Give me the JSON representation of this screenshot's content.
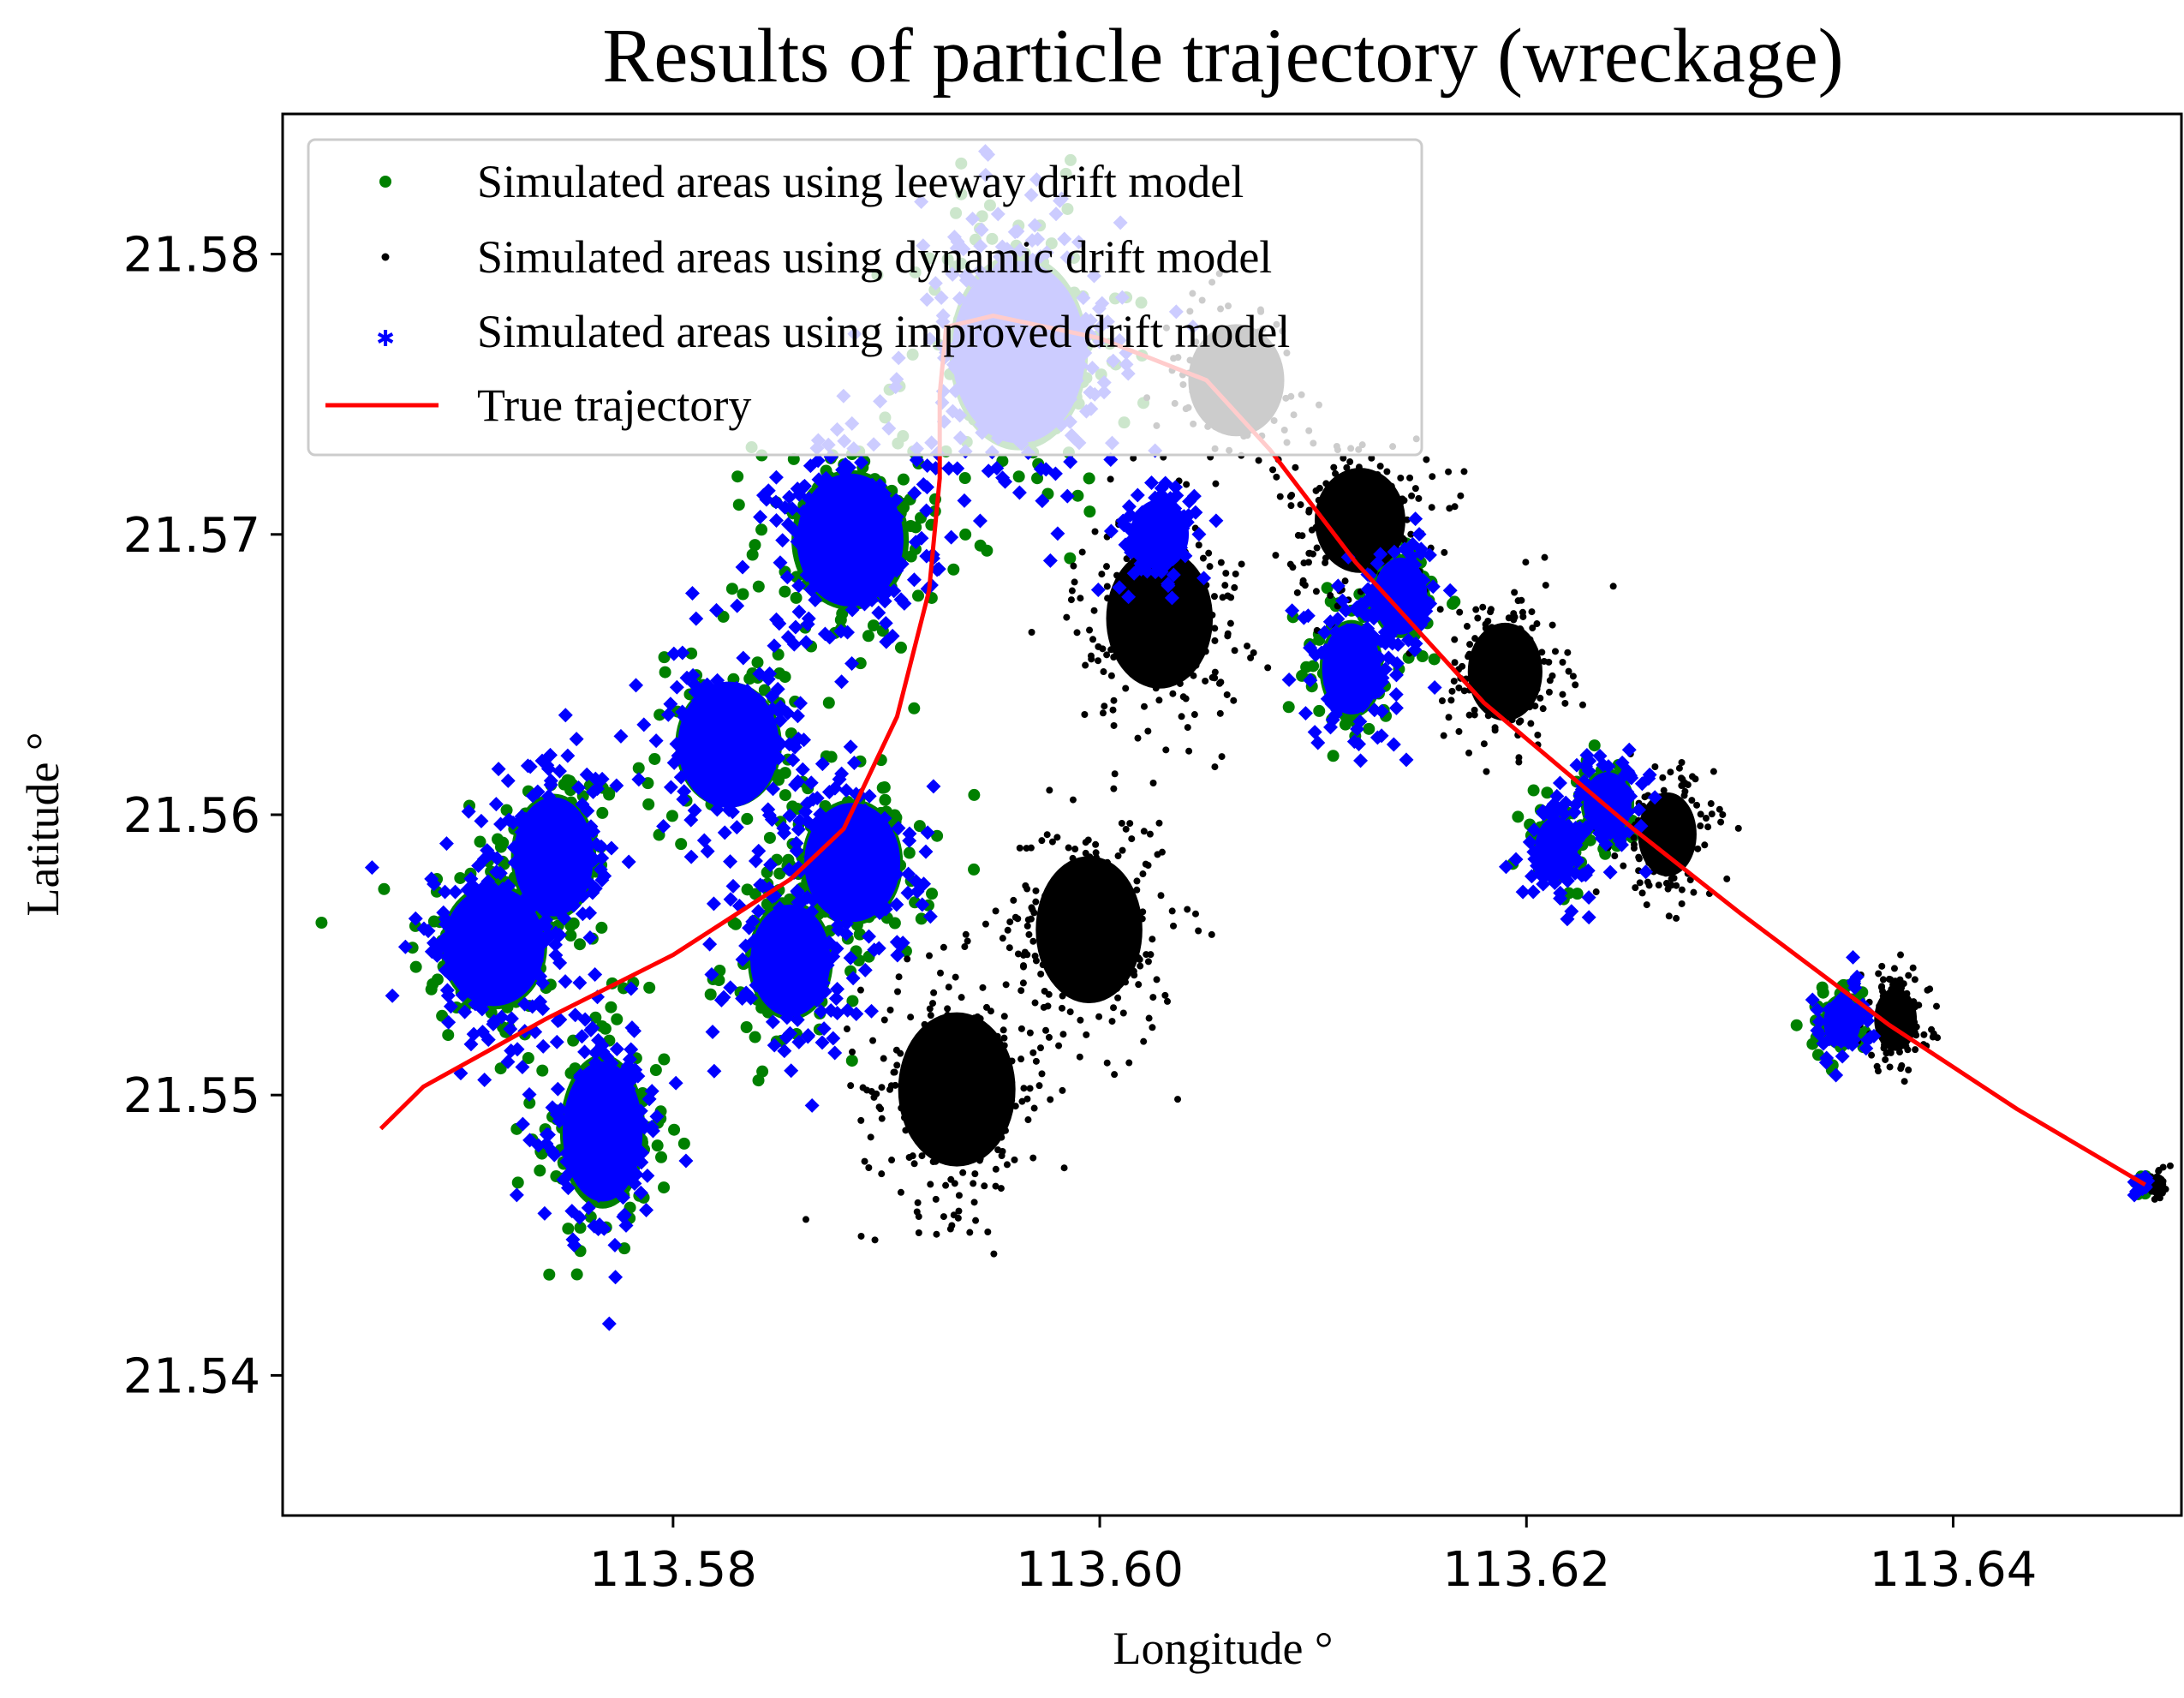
{
  "chart_data": {
    "type": "scatter",
    "title": "Results of particle trajectory (wreckage)",
    "xlabel": "Longitude °",
    "ylabel": "Latitude °",
    "xlim": [
      113.5617,
      113.6507
    ],
    "ylim": [
      21.535,
      21.585
    ],
    "x_ticks": [
      113.58,
      113.6,
      113.62,
      113.64
    ],
    "x_tick_labels": [
      "113.58",
      "113.60",
      "113.62",
      "113.64"
    ],
    "y_ticks": [
      21.54,
      21.55,
      21.56,
      21.57,
      21.58
    ],
    "y_tick_labels": [
      "21.54",
      "21.55",
      "21.56",
      "21.57",
      "21.58"
    ],
    "legend_position": "top-left",
    "series": [
      {
        "name": "Simulated areas using leeway drift model",
        "kind": "scatter",
        "color": "#008000",
        "clusters": [
          {
            "x": 113.5716,
            "y": 21.5553,
            "sx": 0.002,
            "sy": 0.0018,
            "n": 120
          },
          {
            "x": 113.5744,
            "y": 21.5585,
            "sx": 0.0016,
            "sy": 0.0018,
            "n": 90
          },
          {
            "x": 113.5767,
            "y": 21.5487,
            "sx": 0.0016,
            "sy": 0.0022,
            "n": 110
          },
          {
            "x": 113.5826,
            "y": 21.5625,
            "sx": 0.002,
            "sy": 0.0018,
            "n": 100
          },
          {
            "x": 113.5855,
            "y": 21.5548,
            "sx": 0.0016,
            "sy": 0.0017,
            "n": 90
          },
          {
            "x": 113.5884,
            "y": 21.5583,
            "sx": 0.0019,
            "sy": 0.0018,
            "n": 90
          },
          {
            "x": 113.5883,
            "y": 21.5698,
            "sx": 0.0022,
            "sy": 0.002,
            "n": 130
          },
          {
            "x": 113.5962,
            "y": 21.5765,
            "sx": 0.0026,
            "sy": 0.0028,
            "n": 160
          },
          {
            "x": 113.6118,
            "y": 21.5652,
            "sx": 0.0012,
            "sy": 0.0014,
            "n": 60
          },
          {
            "x": 113.6141,
            "y": 21.5678,
            "sx": 0.0011,
            "sy": 0.0012,
            "n": 50
          },
          {
            "x": 113.6214,
            "y": 21.5588,
            "sx": 0.0009,
            "sy": 0.001,
            "n": 45
          },
          {
            "x": 113.6238,
            "y": 21.5604,
            "sx": 0.001,
            "sy": 0.001,
            "n": 45
          },
          {
            "x": 113.6348,
            "y": 21.5526,
            "sx": 0.0008,
            "sy": 0.0008,
            "n": 40
          },
          {
            "x": 113.6489,
            "y": 21.5468,
            "sx": 0.00025,
            "sy": 0.00025,
            "n": 12
          }
        ]
      },
      {
        "name": "Simulated areas using dynamic drift model",
        "kind": "scatter",
        "color": "#000000",
        "clusters": [
          {
            "x": 113.5933,
            "y": 21.5502,
            "sx": 0.0022,
            "sy": 0.0022,
            "n": 280
          },
          {
            "x": 113.5995,
            "y": 21.5559,
            "sx": 0.002,
            "sy": 0.0021,
            "n": 250
          },
          {
            "x": 113.6028,
            "y": 21.567,
            "sx": 0.002,
            "sy": 0.002,
            "n": 220
          },
          {
            "x": 113.6122,
            "y": 21.5705,
            "sx": 0.0017,
            "sy": 0.0015,
            "n": 200
          },
          {
            "x": 113.6064,
            "y": 21.5755,
            "sx": 0.0018,
            "sy": 0.0016,
            "n": 120
          },
          {
            "x": 113.619,
            "y": 21.5651,
            "sx": 0.0014,
            "sy": 0.0014,
            "n": 190
          },
          {
            "x": 113.6266,
            "y": 21.5593,
            "sx": 0.0011,
            "sy": 0.0012,
            "n": 160
          },
          {
            "x": 113.6373,
            "y": 21.5527,
            "sx": 0.0008,
            "sy": 0.0009,
            "n": 150
          },
          {
            "x": 113.6496,
            "y": 21.5468,
            "sx": 0.0003,
            "sy": 0.0003,
            "n": 40
          }
        ]
      },
      {
        "name": "Simulated areas using improved drift model",
        "kind": "scatter",
        "color": "#0000ff",
        "clusters": [
          {
            "x": 113.5716,
            "y": 21.5553,
            "sx": 0.0019,
            "sy": 0.0017,
            "n": 170
          },
          {
            "x": 113.5744,
            "y": 21.5585,
            "sx": 0.0015,
            "sy": 0.0017,
            "n": 130
          },
          {
            "x": 113.5767,
            "y": 21.5487,
            "sx": 0.0015,
            "sy": 0.002,
            "n": 160
          },
          {
            "x": 113.5826,
            "y": 21.5625,
            "sx": 0.0019,
            "sy": 0.0018,
            "n": 150
          },
          {
            "x": 113.5855,
            "y": 21.5548,
            "sx": 0.0015,
            "sy": 0.0016,
            "n": 140
          },
          {
            "x": 113.5884,
            "y": 21.5583,
            "sx": 0.0018,
            "sy": 0.0017,
            "n": 140
          },
          {
            "x": 113.5883,
            "y": 21.5698,
            "sx": 0.002,
            "sy": 0.0019,
            "n": 200
          },
          {
            "x": 113.5962,
            "y": 21.5765,
            "sx": 0.0025,
            "sy": 0.0026,
            "n": 260
          },
          {
            "x": 113.6028,
            "y": 21.57,
            "sx": 0.0011,
            "sy": 0.001,
            "n": 90
          },
          {
            "x": 113.6118,
            "y": 21.5652,
            "sx": 0.0011,
            "sy": 0.0013,
            "n": 100
          },
          {
            "x": 113.6141,
            "y": 21.5678,
            "sx": 0.001,
            "sy": 0.0011,
            "n": 90
          },
          {
            "x": 113.6214,
            "y": 21.5588,
            "sx": 0.0008,
            "sy": 0.0009,
            "n": 80
          },
          {
            "x": 113.6238,
            "y": 21.5604,
            "sx": 0.0009,
            "sy": 0.0009,
            "n": 80
          },
          {
            "x": 113.6348,
            "y": 21.5526,
            "sx": 0.0007,
            "sy": 0.0007,
            "n": 70
          },
          {
            "x": 113.6489,
            "y": 21.5468,
            "sx": 0.0002,
            "sy": 0.0002,
            "n": 20
          }
        ]
      },
      {
        "name": "True trajectory",
        "kind": "line",
        "color": "#ff0000",
        "x": [
          113.5663,
          113.5683,
          113.574,
          113.58,
          113.5855,
          113.588,
          113.5905,
          113.592,
          113.5925,
          113.5925,
          113.5928,
          113.595,
          113.6,
          113.605,
          113.608,
          113.612,
          113.618,
          113.625,
          113.63,
          113.637,
          113.643,
          113.649
        ],
        "y": [
          21.5488,
          21.5503,
          21.5527,
          21.555,
          21.5577,
          21.5595,
          21.5635,
          21.568,
          21.572,
          21.575,
          21.5774,
          21.5778,
          21.577,
          21.5755,
          21.573,
          21.569,
          21.564,
          21.5595,
          21.5565,
          21.5525,
          21.5495,
          21.5468
        ]
      }
    ]
  }
}
